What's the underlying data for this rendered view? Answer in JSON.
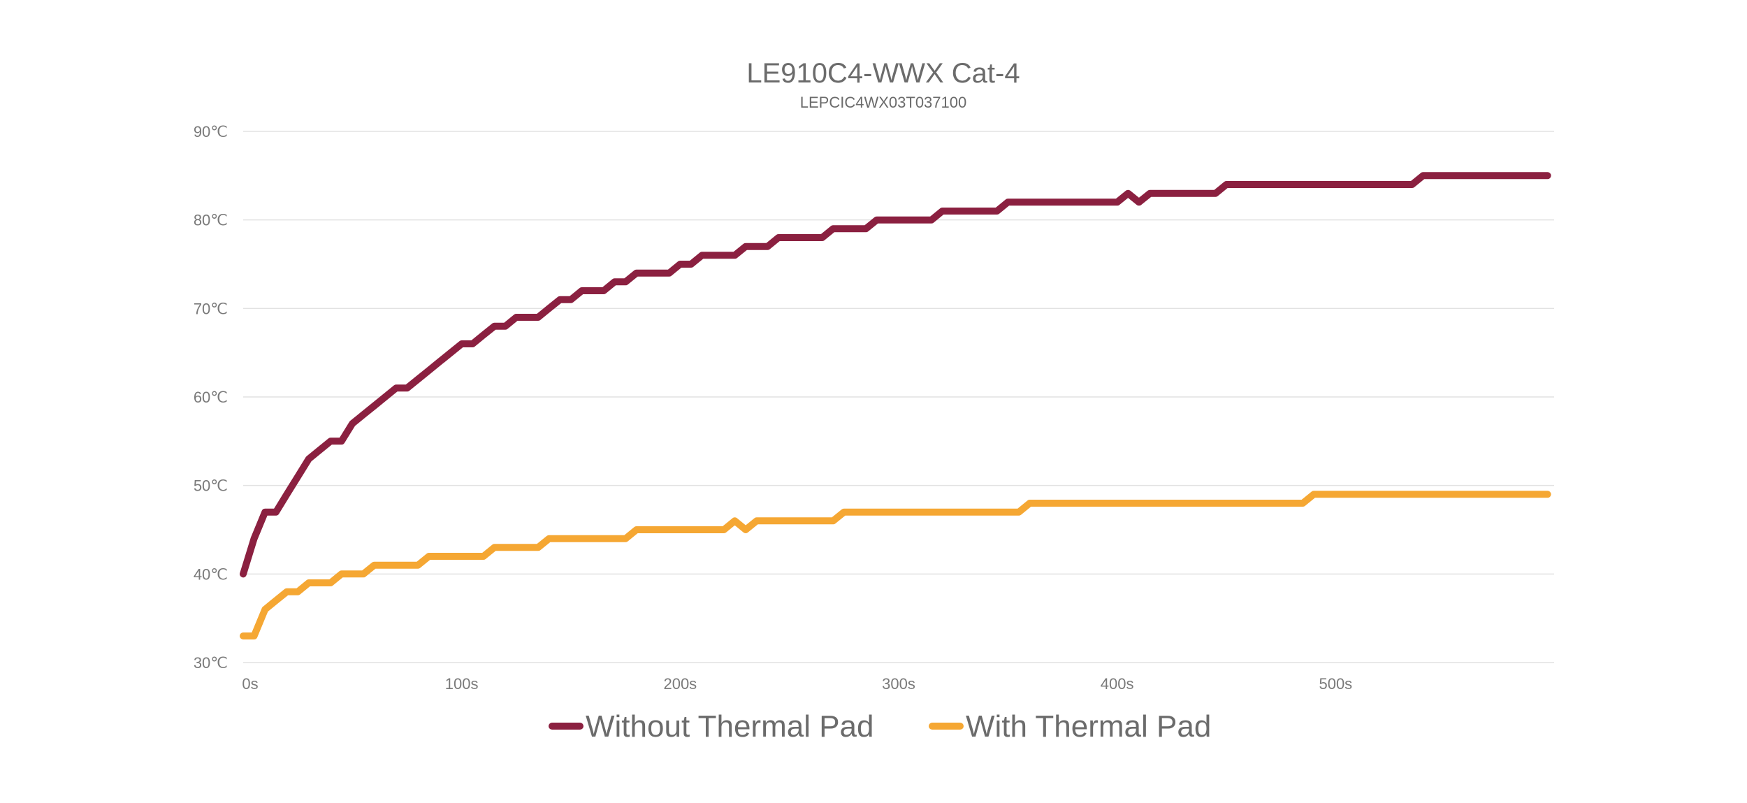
{
  "chart_data": {
    "type": "line",
    "title": "LE910C4-WWX Cat-4",
    "subtitle": "LEPCIC4WX03T037100",
    "xlabel": "",
    "ylabel": "",
    "xlim": [
      0,
      600
    ],
    "ylim": [
      30,
      90
    ],
    "x_ticks": [
      0,
      100,
      200,
      300,
      400,
      500
    ],
    "x_tick_labels": [
      "0s",
      "100s",
      "200s",
      "300s",
      "400s",
      "500s"
    ],
    "y_ticks": [
      30,
      40,
      50,
      60,
      70,
      80,
      90
    ],
    "y_tick_labels": [
      "30℃",
      "40℃",
      "50℃",
      "60℃",
      "70℃",
      "80℃",
      "90℃"
    ],
    "grid": true,
    "legend_position": "bottom",
    "series": [
      {
        "name": "Without Thermal Pad",
        "color": "#8b2040",
        "points": [
          [
            0,
            40
          ],
          [
            5,
            44
          ],
          [
            10,
            47
          ],
          [
            15,
            47
          ],
          [
            20,
            49
          ],
          [
            25,
            51
          ],
          [
            30,
            53
          ],
          [
            35,
            54
          ],
          [
            40,
            55
          ],
          [
            45,
            55
          ],
          [
            50,
            57
          ],
          [
            55,
            58
          ],
          [
            60,
            59
          ],
          [
            65,
            60
          ],
          [
            70,
            61
          ],
          [
            75,
            61
          ],
          [
            80,
            62
          ],
          [
            85,
            63
          ],
          [
            90,
            64
          ],
          [
            95,
            65
          ],
          [
            100,
            66
          ],
          [
            105,
            66
          ],
          [
            110,
            67
          ],
          [
            115,
            68
          ],
          [
            120,
            68
          ],
          [
            125,
            69
          ],
          [
            130,
            69
          ],
          [
            135,
            69
          ],
          [
            140,
            70
          ],
          [
            145,
            71
          ],
          [
            150,
            71
          ],
          [
            155,
            72
          ],
          [
            160,
            72
          ],
          [
            165,
            72
          ],
          [
            170,
            73
          ],
          [
            175,
            73
          ],
          [
            180,
            74
          ],
          [
            185,
            74
          ],
          [
            190,
            74
          ],
          [
            195,
            74
          ],
          [
            200,
            75
          ],
          [
            205,
            75
          ],
          [
            210,
            76
          ],
          [
            215,
            76
          ],
          [
            220,
            76
          ],
          [
            225,
            76
          ],
          [
            230,
            77
          ],
          [
            235,
            77
          ],
          [
            240,
            77
          ],
          [
            245,
            78
          ],
          [
            250,
            78
          ],
          [
            255,
            78
          ],
          [
            260,
            78
          ],
          [
            265,
            78
          ],
          [
            270,
            79
          ],
          [
            275,
            79
          ],
          [
            280,
            79
          ],
          [
            285,
            79
          ],
          [
            290,
            80
          ],
          [
            295,
            80
          ],
          [
            300,
            80
          ],
          [
            305,
            80
          ],
          [
            310,
            80
          ],
          [
            315,
            80
          ],
          [
            320,
            81
          ],
          [
            325,
            81
          ],
          [
            330,
            81
          ],
          [
            335,
            81
          ],
          [
            340,
            81
          ],
          [
            345,
            81
          ],
          [
            350,
            82
          ],
          [
            355,
            82
          ],
          [
            360,
            82
          ],
          [
            365,
            82
          ],
          [
            370,
            82
          ],
          [
            375,
            82
          ],
          [
            380,
            82
          ],
          [
            385,
            82
          ],
          [
            390,
            82
          ],
          [
            395,
            82
          ],
          [
            400,
            82
          ],
          [
            405,
            83
          ],
          [
            410,
            82
          ],
          [
            415,
            83
          ],
          [
            420,
            83
          ],
          [
            425,
            83
          ],
          [
            430,
            83
          ],
          [
            435,
            83
          ],
          [
            440,
            83
          ],
          [
            445,
            83
          ],
          [
            450,
            84
          ],
          [
            455,
            84
          ],
          [
            460,
            84
          ],
          [
            470,
            84
          ],
          [
            480,
            84
          ],
          [
            490,
            84
          ],
          [
            500,
            84
          ],
          [
            510,
            84
          ],
          [
            520,
            84
          ],
          [
            530,
            84
          ],
          [
            535,
            84
          ],
          [
            540,
            85
          ],
          [
            550,
            85
          ],
          [
            560,
            85
          ],
          [
            570,
            85
          ],
          [
            580,
            85
          ],
          [
            590,
            85
          ],
          [
            597,
            85
          ]
        ]
      },
      {
        "name": "With Thermal Pad",
        "color": "#f5a733",
        "points": [
          [
            0,
            33
          ],
          [
            5,
            33
          ],
          [
            10,
            36
          ],
          [
            15,
            37
          ],
          [
            20,
            38
          ],
          [
            25,
            38
          ],
          [
            30,
            39
          ],
          [
            35,
            39
          ],
          [
            40,
            39
          ],
          [
            45,
            40
          ],
          [
            50,
            40
          ],
          [
            55,
            40
          ],
          [
            60,
            41
          ],
          [
            65,
            41
          ],
          [
            70,
            41
          ],
          [
            75,
            41
          ],
          [
            80,
            41
          ],
          [
            85,
            42
          ],
          [
            90,
            42
          ],
          [
            95,
            42
          ],
          [
            100,
            42
          ],
          [
            105,
            42
          ],
          [
            110,
            42
          ],
          [
            115,
            43
          ],
          [
            120,
            43
          ],
          [
            125,
            43
          ],
          [
            130,
            43
          ],
          [
            135,
            43
          ],
          [
            140,
            44
          ],
          [
            145,
            44
          ],
          [
            150,
            44
          ],
          [
            160,
            44
          ],
          [
            170,
            44
          ],
          [
            175,
            44
          ],
          [
            180,
            45
          ],
          [
            190,
            45
          ],
          [
            200,
            45
          ],
          [
            210,
            45
          ],
          [
            215,
            45
          ],
          [
            220,
            45
          ],
          [
            225,
            46
          ],
          [
            230,
            45
          ],
          [
            235,
            46
          ],
          [
            240,
            46
          ],
          [
            250,
            46
          ],
          [
            260,
            46
          ],
          [
            270,
            46
          ],
          [
            275,
            47
          ],
          [
            280,
            47
          ],
          [
            290,
            47
          ],
          [
            300,
            47
          ],
          [
            310,
            47
          ],
          [
            320,
            47
          ],
          [
            330,
            47
          ],
          [
            340,
            47
          ],
          [
            350,
            47
          ],
          [
            355,
            47
          ],
          [
            360,
            48
          ],
          [
            370,
            48
          ],
          [
            380,
            48
          ],
          [
            400,
            48
          ],
          [
            420,
            48
          ],
          [
            440,
            48
          ],
          [
            460,
            48
          ],
          [
            480,
            48
          ],
          [
            485,
            48
          ],
          [
            490,
            49
          ],
          [
            500,
            49
          ],
          [
            520,
            49
          ],
          [
            540,
            49
          ],
          [
            560,
            49
          ],
          [
            580,
            49
          ],
          [
            597,
            49
          ]
        ]
      }
    ]
  }
}
